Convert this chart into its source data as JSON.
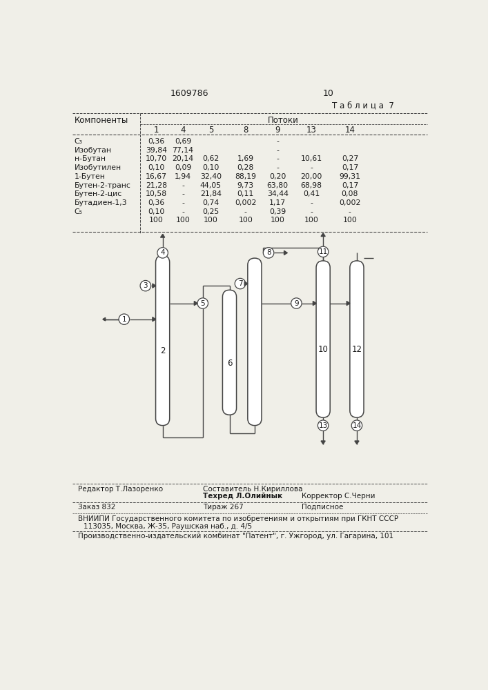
{
  "patent_number": "1609786",
  "page_number": "10",
  "table_title": "Т а б л и ц а  7",
  "col_header_1": "Компоненты",
  "col_header_2": "Потоки",
  "stream_numbers": [
    "1",
    "4",
    "5",
    "8",
    "9",
    "13",
    "14"
  ],
  "rows": [
    {
      "name": "C₃",
      "vals": [
        "0,36",
        "0,69",
        "",
        "",
        "-",
        "",
        ""
      ]
    },
    {
      "name": "Изобутан",
      "vals": [
        "39,84",
        "77,14",
        "",
        "",
        "-",
        "",
        ""
      ]
    },
    {
      "name": "н-Бутан",
      "vals": [
        "10,70",
        "20,14",
        "0,62",
        "1,69",
        "-",
        "10,61",
        "0,27"
      ]
    },
    {
      "name": "Изобутилен",
      "vals": [
        "0,10",
        "0,09",
        "0,10",
        "0,28",
        "-",
        "-",
        "0,17"
      ]
    },
    {
      "name": "1-Бутен",
      "vals": [
        "16,67",
        "1,94",
        "32,40",
        "88,19",
        "0,20",
        "20,00",
        "99,31"
      ]
    },
    {
      "name": "Бутен-2-транс",
      "vals": [
        "21,28",
        "-",
        "44,05",
        "9,73",
        "63,80",
        "68,98",
        "0,17"
      ]
    },
    {
      "name": "Бутен-2-цис",
      "vals": [
        "10,58",
        "-",
        "21,84",
        "0,11",
        "34,44",
        "0,41",
        "0,08"
      ]
    },
    {
      "name": "Бутадиен-1,3",
      "vals": [
        "0,36",
        "-",
        "0,74",
        "0,002",
        "1,17",
        "-",
        "0,002"
      ]
    },
    {
      "name": "C₅",
      "vals": [
        "0,10",
        "-",
        "0,25",
        "-",
        "0,39",
        "-",
        "-"
      ]
    },
    {
      "name": "",
      "vals": [
        "100",
        "100",
        "100",
        "100",
        "100",
        "100",
        "100"
      ]
    }
  ],
  "editor_line": "Редактор Т.Лазоренко",
  "compiler_line": "Составитель Н.Кириллова",
  "techred_line": "Техред Л.Олийнык",
  "corrector_line": "Корректор С.Черни",
  "order_line": "Заказ 832",
  "tirazh_line": "Тираж 267",
  "podpisnoe_line": "Подписное",
  "vnipi_line1": "ВНИИПИ Государственного комитета по изобретениям и открытиям при ГКНТ СССР",
  "vnipi_line2": "113035, Москва, Ж-35, Раушская наб., д. 4/5",
  "patent_line": "Производственно-издательский комбинат \"Патент\", г. Ужгород, ул. Гагарина, 101",
  "bg_color": "#f0efe8",
  "text_color": "#1a1a1a",
  "line_color": "#444444"
}
